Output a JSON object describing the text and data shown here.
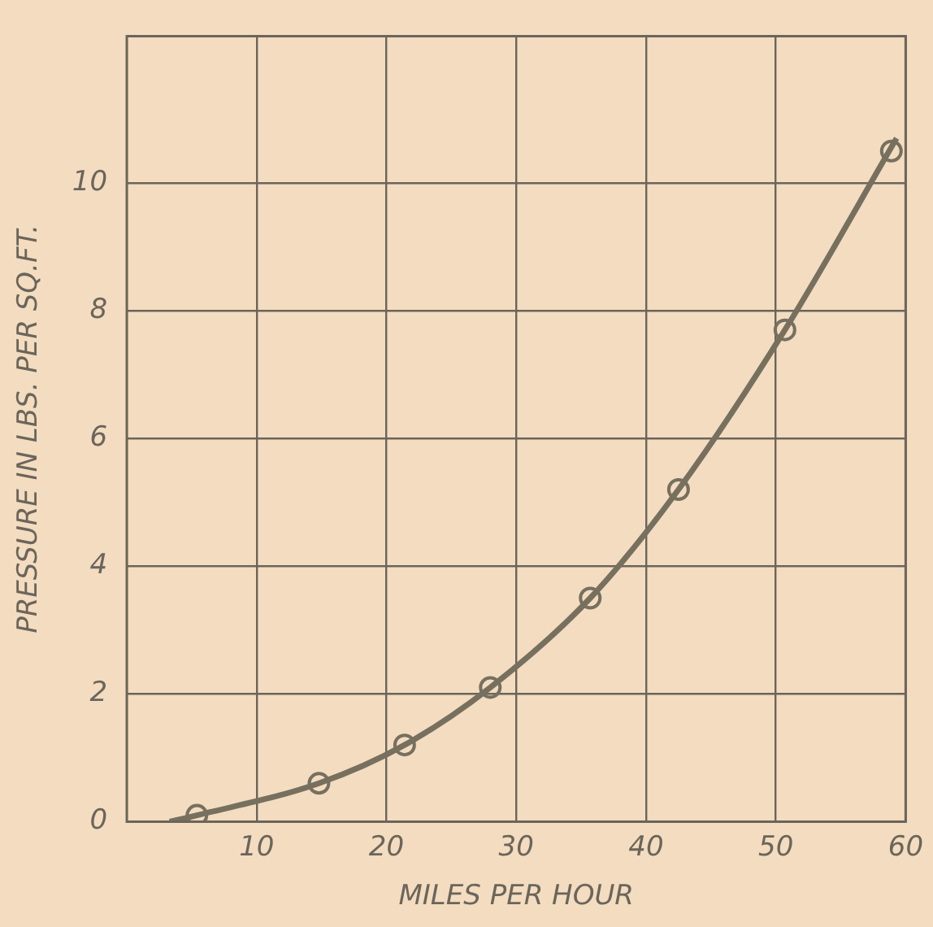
{
  "chart_data": {
    "type": "line",
    "xlabel": "MILES PER HOUR",
    "ylabel": "PRESSURE IN LBS. PER SQ.FT.",
    "xlim": [
      0,
      60
    ],
    "xticks": [
      10,
      20,
      30,
      40,
      50,
      60
    ],
    "ylim": [
      0,
      12.3
    ],
    "yticks": [
      0,
      2,
      4,
      6,
      8,
      10
    ],
    "grid": true,
    "series": [
      {
        "color": "#77705f",
        "marker": "none",
        "x": [
          3.3,
          5.4,
          14.8,
          21.4,
          28.0,
          35.7,
          42.5,
          50.7,
          59.3
        ],
        "values": [
          0,
          0.1,
          0.6,
          1.2,
          2.1,
          3.5,
          5.2,
          7.7,
          10.7
        ]
      },
      {
        "type": "scatter",
        "color": "#77705f",
        "marker": "circle",
        "x": [
          5.4,
          14.8,
          21.4,
          28.0,
          35.7,
          42.5,
          50.7,
          58.9
        ],
        "values": [
          0.1,
          0.6,
          1.2,
          2.1,
          3.5,
          5.2,
          7.7,
          10.5
        ]
      }
    ]
  }
}
